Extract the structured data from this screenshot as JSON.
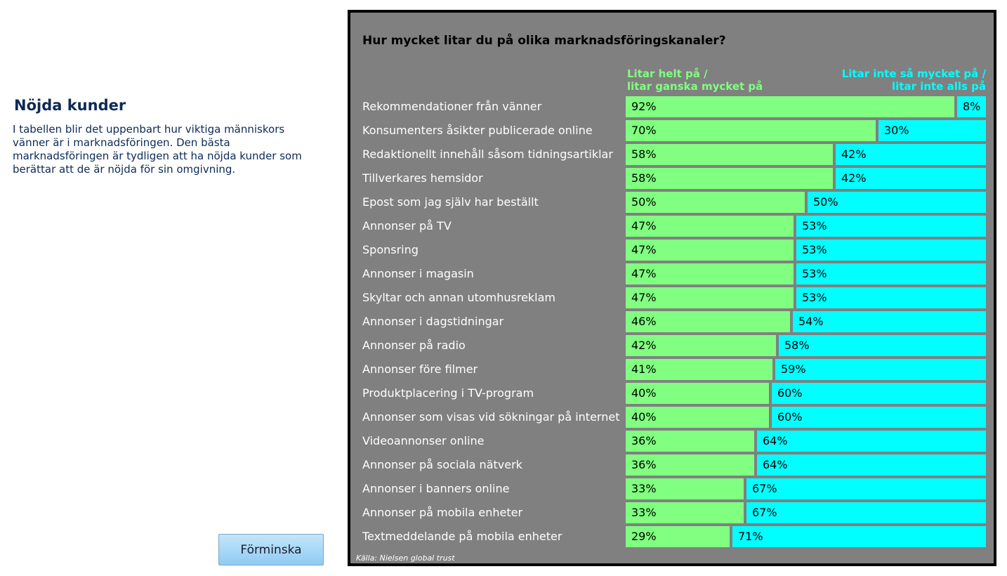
{
  "sidebar": {
    "title": "Nöjda kunder",
    "text": "I tabellen blir det uppenbart hur viktiga människors vänner är i marknadsföringen. Den bästa marknadsföringen är tydligen att ha nöjda kunder som berättar att de är nöjda för sin omgivning.",
    "button_label": "Förminska"
  },
  "colors": {
    "trust": "#80ff80",
    "distrust": "#00ffff",
    "panel": "#808080"
  },
  "chart_data": {
    "type": "bar",
    "orientation": "horizontal",
    "stacked": true,
    "title": "Hur mycket litar du på olika marknadsföringskanaler?",
    "legend": {
      "left_line1": "Litar helt på /",
      "left_line2": "litar ganska mycket på",
      "right_line1": "Litar inte så mycket på /",
      "right_line2": "litar inte alls på"
    },
    "source": "Källa: Nielsen global trust",
    "unit": "%",
    "xlim": [
      0,
      100
    ],
    "categories": [
      "Rekommendationer från vänner",
      "Konsumenters åsikter publicerade online",
      "Redaktionellt innehåll såsom tidningsartiklar",
      "Tillverkares hemsidor",
      "Epost som jag själv har beställt",
      "Annonser på TV",
      "Sponsring",
      "Annonser i magasin",
      "Skyltar och annan utomhusreklam",
      "Annonser i dagstidningar",
      "Annonser på radio",
      "Annonser före filmer",
      "Produktplacering i TV-program",
      "Annonser som visas vid sökningar på internet",
      "Videoannonser online",
      "Annonser på sociala nätverk",
      "Annonser i banners online",
      "Annonser på mobila enheter",
      "Textmeddelande på mobila enheter"
    ],
    "trust": [
      92,
      70,
      58,
      58,
      50,
      47,
      47,
      47,
      47,
      46,
      42,
      41,
      40,
      40,
      36,
      36,
      33,
      33,
      29
    ],
    "distrust": [
      8,
      30,
      42,
      42,
      50,
      53,
      53,
      53,
      53,
      54,
      58,
      59,
      60,
      60,
      64,
      64,
      67,
      67,
      71
    ]
  }
}
